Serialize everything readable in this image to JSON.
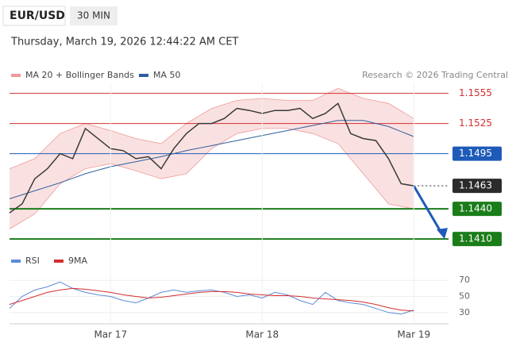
{
  "header": {
    "symbol": "EUR/USD",
    "interval": "30 MIN",
    "timestamp": "Thursday, March 19, 2026 12:44:22 AM CET",
    "credit": "Research © 2026 Trading Central"
  },
  "chart_data": [
    {
      "type": "line",
      "x": [
        -16,
        -14,
        -12,
        -10,
        -8,
        -6,
        -4,
        -2,
        0,
        2,
        4,
        6,
        8,
        10,
        12,
        14,
        16,
        18,
        20,
        22,
        24,
        26,
        28,
        30,
        32,
        34,
        36,
        38,
        40,
        42,
        44,
        46,
        48
      ],
      "xlim": [
        -16,
        53.5
      ],
      "ylim": [
        1.1403,
        1.1565
      ],
      "price": {
        "color": "#3a3a3a",
        "values": [
          1.1436,
          1.1445,
          1.147,
          1.148,
          1.1495,
          1.149,
          1.152,
          1.151,
          1.15,
          1.1498,
          1.149,
          1.1492,
          1.148,
          1.15,
          1.1515,
          1.1525,
          1.1525,
          1.153,
          1.154,
          1.1538,
          1.1535,
          1.1538,
          1.1538,
          1.154,
          1.153,
          1.1535,
          1.1545,
          1.1515,
          1.151,
          1.1508,
          1.149,
          1.1465,
          1.1463
        ]
      },
      "bands": {
        "name": "MA 20 + Bollinger Bands",
        "color": "#ef9a9a",
        "x": [
          -16,
          -12,
          -8,
          -4,
          0,
          4,
          8,
          12,
          16,
          20,
          24,
          28,
          32,
          36,
          40,
          44,
          48
        ],
        "upper": [
          1.148,
          1.149,
          1.1515,
          1.1525,
          1.1518,
          1.151,
          1.1505,
          1.1525,
          1.154,
          1.1548,
          1.155,
          1.1548,
          1.1548,
          1.156,
          1.155,
          1.1545,
          1.153
        ],
        "lower": [
          1.142,
          1.1435,
          1.1465,
          1.148,
          1.1485,
          1.1478,
          1.147,
          1.1475,
          1.15,
          1.1515,
          1.152,
          1.152,
          1.1515,
          1.1505,
          1.1475,
          1.1445,
          1.144
        ]
      },
      "ma50": {
        "name": "MA 50",
        "color": "#2f5f9e",
        "x": [
          -16,
          -12,
          -8,
          -4,
          0,
          4,
          8,
          12,
          16,
          20,
          24,
          28,
          32,
          36,
          40,
          44,
          48
        ],
        "values": [
          1.145,
          1.1458,
          1.1466,
          1.1475,
          1.1482,
          1.1487,
          1.1492,
          1.1498,
          1.1503,
          1.1508,
          1.1513,
          1.1518,
          1.1523,
          1.1528,
          1.1528,
          1.1522,
          1.1512
        ]
      },
      "levels": [
        {
          "value": 1.1555,
          "label": "1.1555",
          "color": "#d32f2f",
          "box": false
        },
        {
          "value": 1.1525,
          "label": "1.1525",
          "color": "#d32f2f",
          "box": false
        },
        {
          "value": 1.1495,
          "label": "1.1495",
          "color": "#1e5bb8",
          "box": true
        },
        {
          "value": 1.1463,
          "label": "1.1463",
          "color": "#2b2b2b",
          "box": true
        },
        {
          "value": 1.144,
          "label": "1.1440",
          "color": "#1a7d1a",
          "box": true
        },
        {
          "value": 1.141,
          "label": "1.1410",
          "color": "#1a7d1a",
          "box": true
        }
      ]
    },
    {
      "type": "line",
      "x": [
        -16,
        -14,
        -12,
        -10,
        -8,
        -6,
        -4,
        -2,
        0,
        2,
        4,
        6,
        8,
        10,
        12,
        14,
        16,
        18,
        20,
        22,
        24,
        26,
        28,
        30,
        32,
        34,
        36,
        38,
        40,
        42,
        44,
        46,
        48
      ],
      "xlim": [
        -16,
        53.5
      ],
      "ylim": [
        14,
        88
      ],
      "yticks": [
        30,
        50,
        70
      ],
      "xticks": [
        {
          "value": 0,
          "label": "Mar 17"
        },
        {
          "value": 24,
          "label": "Mar 18"
        },
        {
          "value": 48,
          "label": "Mar 19"
        }
      ],
      "series": [
        {
          "name": "RSI",
          "color": "#5b8bd8",
          "values": [
            35,
            50,
            58,
            62,
            68,
            60,
            55,
            52,
            50,
            45,
            42,
            48,
            55,
            58,
            55,
            57,
            58,
            55,
            50,
            52,
            48,
            55,
            52,
            45,
            40,
            55,
            45,
            42,
            40,
            35,
            30,
            28,
            33
          ]
        },
        {
          "name": "9MA",
          "color": "#d32f2f",
          "values": [
            40,
            45,
            50,
            55,
            58,
            60,
            59,
            57,
            55,
            52,
            50,
            48,
            49,
            51,
            53,
            55,
            56,
            56,
            55,
            53,
            52,
            51,
            51,
            50,
            48,
            47,
            46,
            45,
            43,
            40,
            36,
            33,
            32
          ]
        }
      ]
    }
  ]
}
